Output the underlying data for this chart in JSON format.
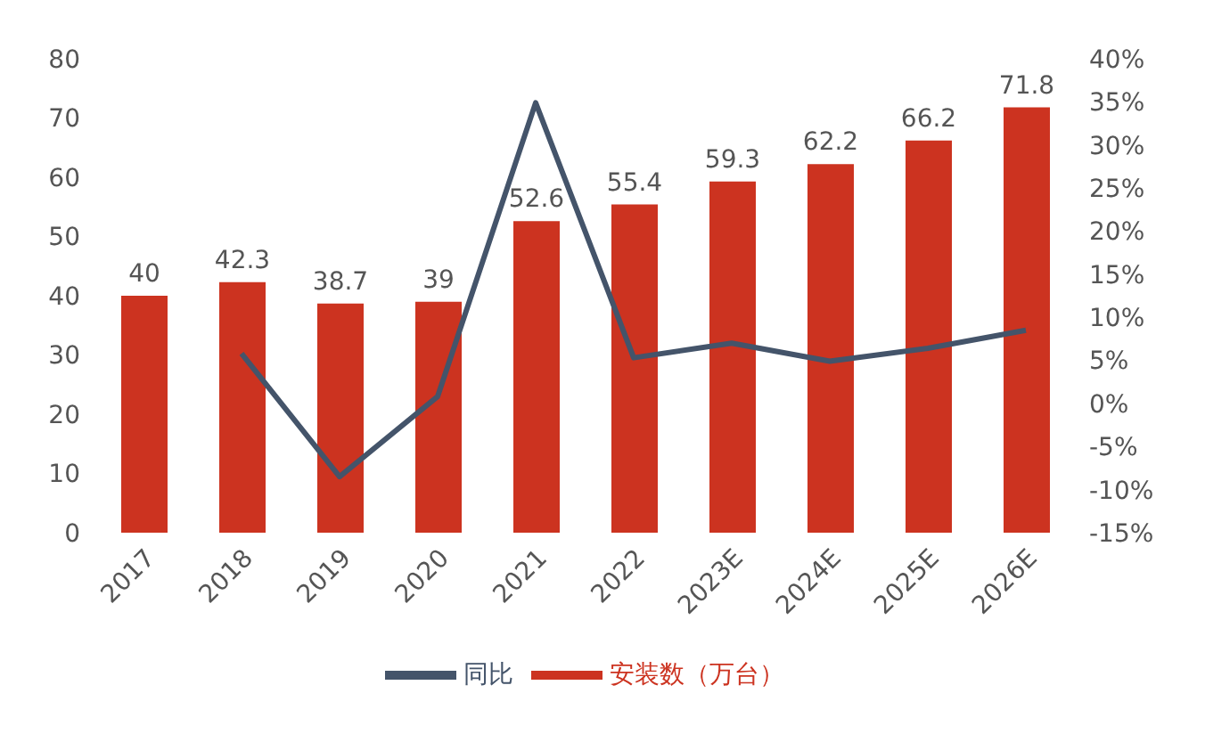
{
  "chart_data": {
    "type": "bar",
    "categories": [
      "2017",
      "2018",
      "2019",
      "2020",
      "2021",
      "2022",
      "2023E",
      "2024E",
      "2025E",
      "2026E"
    ],
    "series": [
      {
        "name": "安装数（万台）",
        "color": "#cc3320",
        "values": [
          40,
          42.3,
          38.7,
          39,
          52.6,
          55.4,
          59.3,
          62.2,
          66.2,
          71.8
        ],
        "value_labels": [
          "40",
          "42.3",
          "38.7",
          "39",
          "52.6",
          "55.4",
          "59.3",
          "62.2",
          "66.2",
          "71.8"
        ]
      },
      {
        "name": "同比",
        "type": "line",
        "axis": "y2",
        "color": "#44546a",
        "values": [
          null,
          5.8,
          -8.5,
          0.8,
          34.9,
          5.3,
          7.0,
          4.9,
          6.4,
          8.5
        ]
      }
    ],
    "ylim": [
      0,
      80
    ],
    "yticks": [
      0,
      10,
      20,
      30,
      40,
      50,
      60,
      70,
      80
    ],
    "y2lim": [
      -15,
      40
    ],
    "y2ticks": [
      {
        "value": -15,
        "label": "-15%"
      },
      {
        "value": -10,
        "label": "-10%"
      },
      {
        "value": -5,
        "label": "-5%"
      },
      {
        "value": 0,
        "label": "0%"
      },
      {
        "value": 5,
        "label": "5%"
      },
      {
        "value": 10,
        "label": "10%"
      },
      {
        "value": 15,
        "label": "15%"
      },
      {
        "value": 20,
        "label": "20%"
      },
      {
        "value": 25,
        "label": "25%"
      },
      {
        "value": 30,
        "label": "30%"
      },
      {
        "value": 35,
        "label": "35%"
      },
      {
        "value": 40,
        "label": "40%"
      }
    ],
    "grid": false,
    "legend": "bottom",
    "marker": "none",
    "line_style": "solid"
  }
}
